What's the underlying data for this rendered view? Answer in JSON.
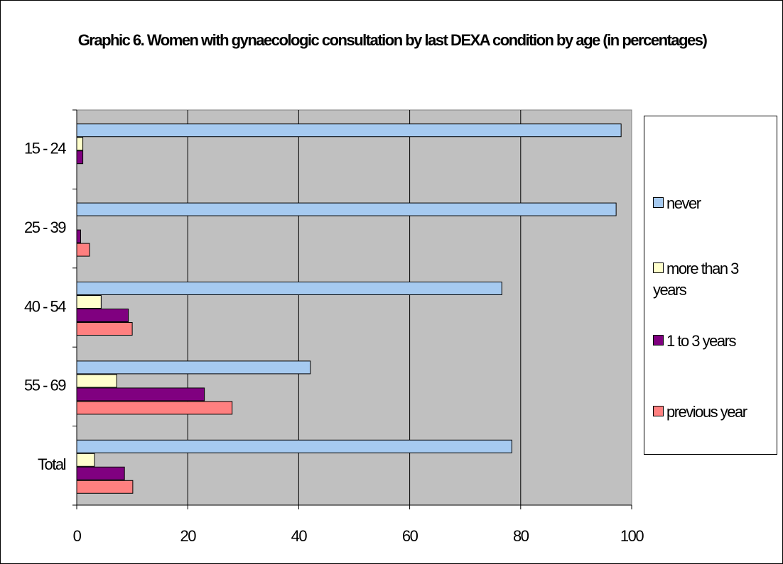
{
  "chart_data": {
    "type": "hbar",
    "title": "Graphic 6. Women with gynaecologic consultation by last DEXA condition by age (in percentages)",
    "categories": [
      "15 - 24",
      "25 - 39",
      "40 - 54",
      "55 - 69",
      "Total"
    ],
    "series": [
      {
        "name": "never",
        "color": "#a6caf0",
        "values": [
          98.1,
          97.2,
          76.6,
          42.1,
          78.4
        ]
      },
      {
        "name": "more than 3 years",
        "color": "#ffffcc",
        "values": [
          1.1,
          0,
          4.4,
          7.2,
          3.2
        ]
      },
      {
        "name": "1 to 3 years",
        "color": "#800080",
        "values": [
          1.1,
          0.7,
          9.3,
          23.0,
          8.6
        ]
      },
      {
        "name": "previous year",
        "color": "#ff8080",
        "values": [
          0,
          2.3,
          10.0,
          28.0,
          10.1
        ]
      }
    ],
    "xlim": [
      0,
      100
    ],
    "xticks": [
      0,
      20,
      40,
      60,
      80,
      100
    ],
    "grid": true,
    "legend": "right"
  }
}
